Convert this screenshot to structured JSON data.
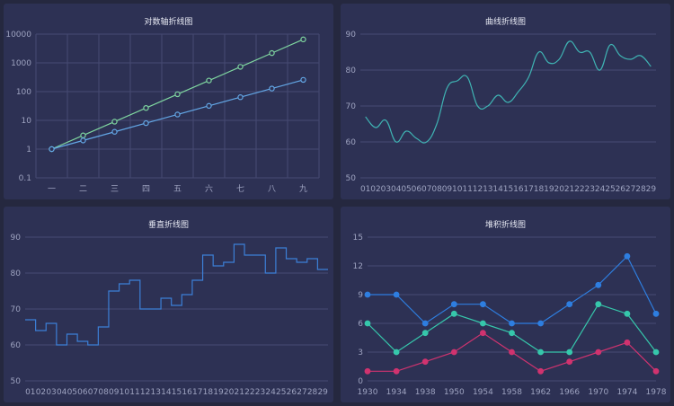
{
  "charts": [
    {
      "title": "对数轴折线图",
      "type": "line",
      "scale": "log",
      "categories": [
        "一",
        "二",
        "三",
        "四",
        "五",
        "六",
        "七",
        "八",
        "九"
      ],
      "yticks": [
        0.1,
        1,
        10,
        100,
        1000,
        10000
      ],
      "ylim": [
        0.1,
        10000
      ],
      "grid": "both",
      "series": [
        {
          "values": [
            1,
            3,
            9,
            27,
            81,
            243,
            729,
            2187,
            6561
          ],
          "color": "#7fd6a0",
          "dot": true
        },
        {
          "values": [
            1,
            2,
            4,
            8,
            16,
            32,
            64,
            128,
            256
          ],
          "color": "#63a7e6",
          "dot": true
        }
      ]
    },
    {
      "title": "曲线折线图",
      "type": "line",
      "style": "smooth",
      "categories": [
        "01",
        "02",
        "03",
        "04",
        "05",
        "06",
        "07",
        "08",
        "09",
        "10",
        "11",
        "12",
        "13",
        "14",
        "15",
        "16",
        "17",
        "18",
        "19",
        "20",
        "21",
        "22",
        "23",
        "24",
        "25",
        "26",
        "27",
        "28",
        "29"
      ],
      "yticks": [
        50,
        60,
        70,
        80,
        90
      ],
      "ylim": [
        50,
        90
      ],
      "grid": "horizontal",
      "series": [
        {
          "values": [
            67,
            64,
            66,
            60,
            63,
            61,
            60,
            65,
            75,
            77,
            78,
            70,
            70,
            73,
            71,
            74,
            78,
            85,
            82,
            83,
            88,
            85,
            85,
            80,
            87,
            84,
            83,
            84,
            81
          ],
          "color": "#3fb3b3",
          "dot": false
        }
      ]
    },
    {
      "title": "垂直折线图",
      "type": "line",
      "style": "step",
      "categories": [
        "01",
        "02",
        "03",
        "04",
        "05",
        "06",
        "07",
        "08",
        "09",
        "10",
        "11",
        "12",
        "13",
        "14",
        "15",
        "16",
        "17",
        "18",
        "19",
        "20",
        "21",
        "22",
        "23",
        "24",
        "25",
        "26",
        "27",
        "28",
        "29"
      ],
      "yticks": [
        50,
        60,
        70,
        80,
        90
      ],
      "ylim": [
        50,
        90
      ],
      "grid": "horizontal",
      "series": [
        {
          "values": [
            67,
            64,
            66,
            60,
            63,
            61,
            60,
            65,
            75,
            77,
            78,
            70,
            70,
            73,
            71,
            74,
            78,
            85,
            82,
            83,
            88,
            85,
            85,
            80,
            87,
            84,
            83,
            84,
            81
          ],
          "color": "#3c7fd6",
          "dot": false
        }
      ]
    },
    {
      "title": "堆积折线图",
      "type": "line",
      "categories": [
        "1930",
        "1934",
        "1938",
        "1950",
        "1954",
        "1958",
        "1962",
        "1966",
        "1970",
        "1974",
        "1978"
      ],
      "yticks": [
        0,
        3,
        6,
        9,
        12,
        15
      ],
      "ylim": [
        0,
        15
      ],
      "grid": "horizontal",
      "series": [
        {
          "values": [
            9,
            9,
            6,
            8,
            8,
            6,
            6,
            8,
            10,
            13,
            7
          ],
          "color": "#2e7ee0",
          "dot": true,
          "filled": true
        },
        {
          "values": [
            6,
            3,
            5,
            7,
            6,
            5,
            3,
            3,
            8,
            7,
            3
          ],
          "color": "#36c7ab",
          "dot": true,
          "filled": true
        },
        {
          "values": [
            1,
            1,
            2,
            3,
            5,
            3,
            1,
            2,
            3,
            4,
            1
          ],
          "color": "#d0336f",
          "dot": true,
          "filled": true
        }
      ]
    }
  ]
}
